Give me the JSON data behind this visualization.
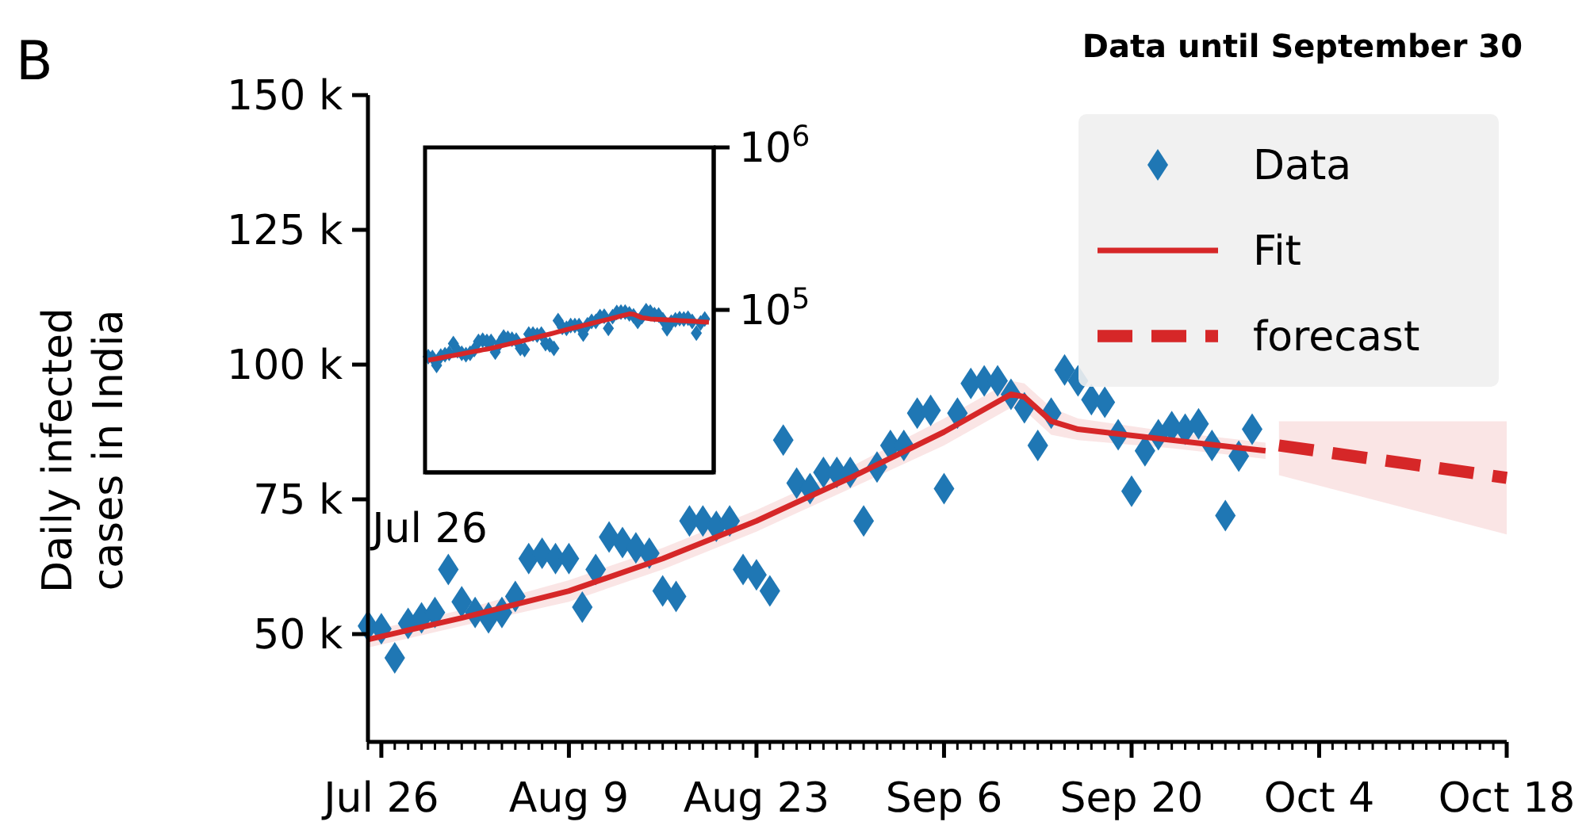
{
  "chart_data": [
    {
      "type": "scatter",
      "title": "Data until September 30",
      "ylabel": "Daily infected\ncases in India",
      "annotations": [
        "B"
      ],
      "legend": "top right",
      "xlim": [
        "--07-25",
        "--10-18"
      ],
      "ylim": [
        30000,
        150000
      ],
      "xticks": [
        {
          "value": "--07-26",
          "label": "Jul 26"
        },
        {
          "value": "--08-09",
          "label": "Aug 9"
        },
        {
          "value": "--08-23",
          "label": "Aug 23"
        },
        {
          "value": "--09-06",
          "label": "Sep 6"
        },
        {
          "value": "--09-20",
          "label": "Sep 20"
        },
        {
          "value": "--10-04",
          "label": "Oct 4"
        },
        {
          "value": "--10-18",
          "label": "Oct 18"
        }
      ],
      "yticks": [
        {
          "value": 50000,
          "label": "50 k"
        },
        {
          "value": 75000,
          "label": "75 k"
        },
        {
          "value": 100000,
          "label": "100 k"
        },
        {
          "value": 125000,
          "label": "125 k"
        },
        {
          "value": 150000,
          "label": "150 k"
        }
      ],
      "x": [
        "--07-25",
        "--07-26",
        "--07-27",
        "--07-28",
        "--07-29",
        "--07-30",
        "--07-31",
        "--08-01",
        "--08-02",
        "--08-03",
        "--08-04",
        "--08-05",
        "--08-06",
        "--08-07",
        "--08-08",
        "--08-09",
        "--08-10",
        "--08-11",
        "--08-12",
        "--08-13",
        "--08-14",
        "--08-15",
        "--08-16",
        "--08-17",
        "--08-18",
        "--08-19",
        "--08-20",
        "--08-21",
        "--08-22",
        "--08-23",
        "--08-24",
        "--08-25",
        "--08-26",
        "--08-27",
        "--08-28",
        "--08-29",
        "--08-30",
        "--08-31",
        "--09-01",
        "--09-02",
        "--09-03",
        "--09-04",
        "--09-05",
        "--09-06",
        "--09-07",
        "--09-08",
        "--09-09",
        "--09-10",
        "--09-11",
        "--09-12",
        "--09-13",
        "--09-14",
        "--09-15",
        "--09-16",
        "--09-17",
        "--09-18",
        "--09-19",
        "--09-20",
        "--09-21",
        "--09-22",
        "--09-23",
        "--09-24",
        "--09-25",
        "--09-26",
        "--09-27",
        "--09-28",
        "--09-29"
      ],
      "series": [
        {
          "name": "Data",
          "type": "scatter",
          "marker": "diamond",
          "color": "#1f77b4",
          "values": [
            51500,
            51000,
            45600,
            52000,
            53000,
            54000,
            62000,
            56000,
            54000,
            53000,
            54000,
            57000,
            64000,
            65000,
            64000,
            64000,
            55000,
            62000,
            68000,
            67000,
            66000,
            65000,
            58000,
            57000,
            71000,
            71000,
            70000,
            71000,
            62000,
            61000,
            58000,
            86000,
            78000,
            77000,
            80000,
            80000,
            80000,
            71000,
            81000,
            85000,
            85000,
            91000,
            91500,
            77000,
            91000,
            96500,
            97000,
            97000,
            94500,
            92000,
            85000,
            91000,
            99000,
            97000,
            93500,
            93000,
            87000,
            76500,
            84000,
            87000,
            88500,
            88000,
            89000,
            85000,
            72000,
            83000,
            88000
          ]
        },
        {
          "name": "Fit",
          "type": "line",
          "color": "#d62728",
          "x": [
            "--07-25",
            "--08-01",
            "--08-09",
            "--08-16",
            "--08-23",
            "--08-30",
            "--09-06",
            "--09-11",
            "--09-12",
            "--09-14",
            "--09-16",
            "--09-23",
            "--09-30"
          ],
          "values": [
            49000,
            53000,
            58000,
            64000,
            71000,
            79000,
            87500,
            94500,
            94000,
            89500,
            88000,
            86000,
            84000
          ],
          "lower": [
            47500,
            51500,
            56000,
            62000,
            69000,
            77000,
            85000,
            92000,
            91500,
            87000,
            86000,
            84500,
            82500
          ],
          "upper": [
            50500,
            54500,
            60000,
            66000,
            73000,
            81000,
            90000,
            97000,
            96500,
            92000,
            90000,
            87500,
            85500
          ]
        },
        {
          "name": "forecast",
          "type": "line",
          "line_style": "dashed",
          "color": "#d62728",
          "x": [
            "--10-01",
            "--10-18"
          ],
          "values": [
            85000,
            79000
          ],
          "lower": [
            79500,
            68500
          ],
          "upper": [
            89500,
            89500
          ]
        }
      ]
    },
    {
      "type": "scatter",
      "log": "y",
      "ylim": [
        10000,
        1000000
      ],
      "annotations": [
        "Jul 26"
      ],
      "categories": [
        null,
        null,
        null,
        null,
        null,
        null,
        null,
        null,
        null,
        null,
        null,
        null,
        null,
        null,
        null,
        null,
        null,
        null,
        null,
        null,
        null,
        null,
        null,
        null,
        null,
        null,
        null,
        null,
        null,
        null,
        null,
        null,
        null,
        null,
        null,
        null,
        null,
        null,
        null,
        null,
        null,
        null,
        null,
        null,
        null,
        null,
        null,
        null,
        null,
        null,
        null,
        null,
        null,
        null,
        null,
        null,
        null,
        null,
        null,
        null,
        null,
        null,
        null,
        null,
        null,
        null,
        null,
        null
      ],
      "yticks": [
        {
          "value": 100000,
          "label": "10$^{5}$"
        },
        {
          "value": 1000000,
          "label": "10$^{6}$"
        }
      ],
      "series": [
        {
          "type": "scatter",
          "marker": "diamond",
          "color": "#1f77b4",
          "values": [
            51500,
            51000,
            45600,
            52000,
            53000,
            54000,
            62000,
            56000,
            54000,
            53000,
            54000,
            57000,
            64000,
            65000,
            64000,
            64000,
            55000,
            62000,
            68000,
            67000,
            66000,
            65000,
            58000,
            57000,
            71000,
            71000,
            70000,
            71000,
            62000,
            61000,
            58000,
            86000,
            78000,
            77000,
            80000,
            80000,
            80000,
            71000,
            81000,
            85000,
            85000,
            91000,
            91500,
            77000,
            91000,
            96500,
            97000,
            97000,
            94500,
            92000,
            85000,
            91000,
            99000,
            97000,
            93500,
            93000,
            87000,
            76500,
            84000,
            87000,
            88500,
            88000,
            89000,
            85000,
            72000,
            83000,
            88000,
            null
          ]
        },
        {
          "type": "line",
          "color": "#d62728",
          "values": [
            49000,
            49600,
            50100,
            50700,
            51300,
            51900,
            52400,
            53000,
            53600,
            54300,
            54900,
            55500,
            56100,
            56800,
            57400,
            58000,
            58900,
            59700,
            60600,
            61400,
            62300,
            63100,
            64000,
            65000,
            66000,
            67000,
            68000,
            69000,
            70000,
            71000,
            72100,
            73300,
            74400,
            75600,
            76700,
            77900,
            79000,
            80200,
            81400,
            82600,
            83900,
            85100,
            86300,
            87500,
            88900,
            90300,
            91700,
            93100,
            94500,
            94000,
            91800,
            89500,
            88800,
            88000,
            87700,
            87400,
            87100,
            86900,
            86600,
            86300,
            86000,
            85700,
            85400,
            85100,
            84900,
            84600,
            84300,
            84000
          ]
        }
      ]
    }
  ]
}
